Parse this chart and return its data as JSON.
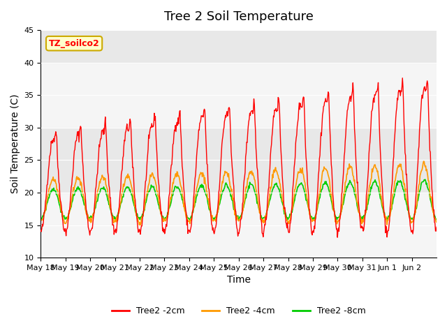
{
  "title": "Tree 2 Soil Temperature",
  "xlabel": "Time",
  "ylabel": "Soil Temperature (C)",
  "ylim": [
    10,
    45
  ],
  "annotation_text": "TZ_soilco2",
  "annotation_bg": "#ffffcc",
  "annotation_border": "#ccaa00",
  "bg_band_color": "#e8e8e8",
  "legend_entries": [
    "Tree2 -2cm",
    "Tree2 -4cm",
    "Tree2 -8cm"
  ],
  "legend_colors": [
    "#ff0000",
    "#ff9900",
    "#00cc00"
  ],
  "x_tick_labels": [
    "May 18",
    "May 19",
    "May 20",
    "May 21",
    "May 22",
    "May 23",
    "May 24",
    "May 25",
    "May 26",
    "May 27",
    "May 28",
    "May 29",
    "May 30",
    "May 31",
    "Jun 1",
    "Jun 2"
  ],
  "n_days": 16,
  "day_points": 48,
  "yticks": [
    10,
    15,
    20,
    25,
    30,
    35,
    40,
    45
  ]
}
